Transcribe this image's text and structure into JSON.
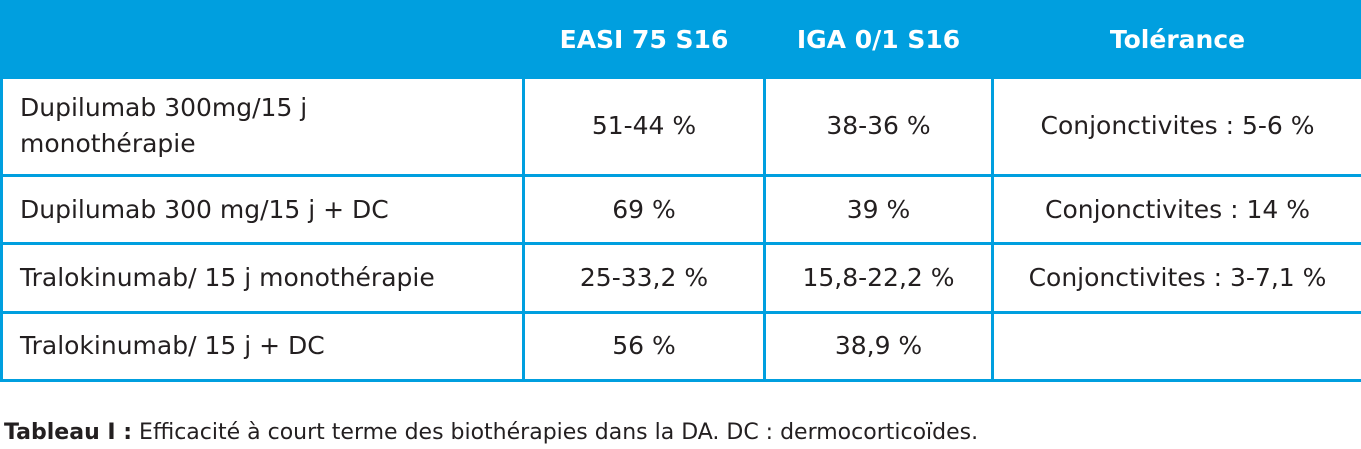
{
  "table": {
    "headers": [
      "",
      "EASI 75 S16",
      "IGA 0/1 S16",
      "Tolérance"
    ],
    "rows": [
      [
        "Dupilumab 300mg/15 j monothérapie",
        "51-44 %",
        "38-36 %",
        "Conjonctivites : 5-6 %"
      ],
      [
        "Dupilumab 300 mg/15 j + DC",
        "69 %",
        "39 %",
        "Conjonctivites : 14 %"
      ],
      [
        "Tralokinumab/ 15 j monothérapie",
        "25-33,2 %",
        "15,8-22,2 %",
        "Conjonctivites : 3-7,1 %"
      ],
      [
        "Tralokinumab/ 15 j + DC",
        "56 %",
        "38,9 %",
        ""
      ]
    ]
  },
  "caption": {
    "label": "Tableau I :",
    "text": " Efficacité à court terme des biothérapies dans la DA. DC : dermocorticoïdes."
  },
  "colors": {
    "accent": "#009fdf",
    "text": "#231f20"
  }
}
